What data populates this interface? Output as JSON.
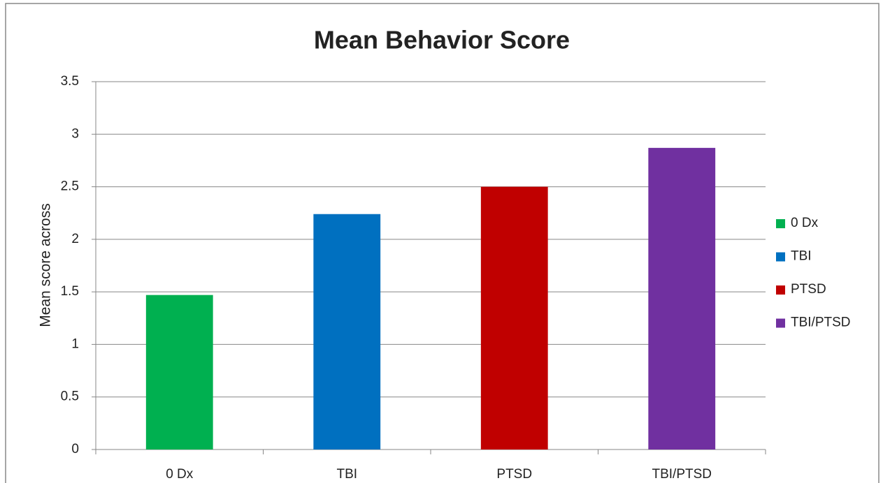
{
  "chart_data": {
    "type": "bar",
    "title": "Mean Behavior Score",
    "y_label": "Mean score across",
    "categories": [
      "0 Dx",
      "TBI",
      "PTSD",
      "TBI/PTSD"
    ],
    "values": [
      1.47,
      2.24,
      2.5,
      2.87
    ],
    "colors": [
      "#00b050",
      "#0070c0",
      "#c00000",
      "#7030a0"
    ],
    "ylim": [
      0,
      3.5
    ],
    "yticks": [
      0,
      0.5,
      1,
      1.5,
      2,
      2.5,
      3,
      3.5
    ],
    "grid": true,
    "legend": "right"
  }
}
